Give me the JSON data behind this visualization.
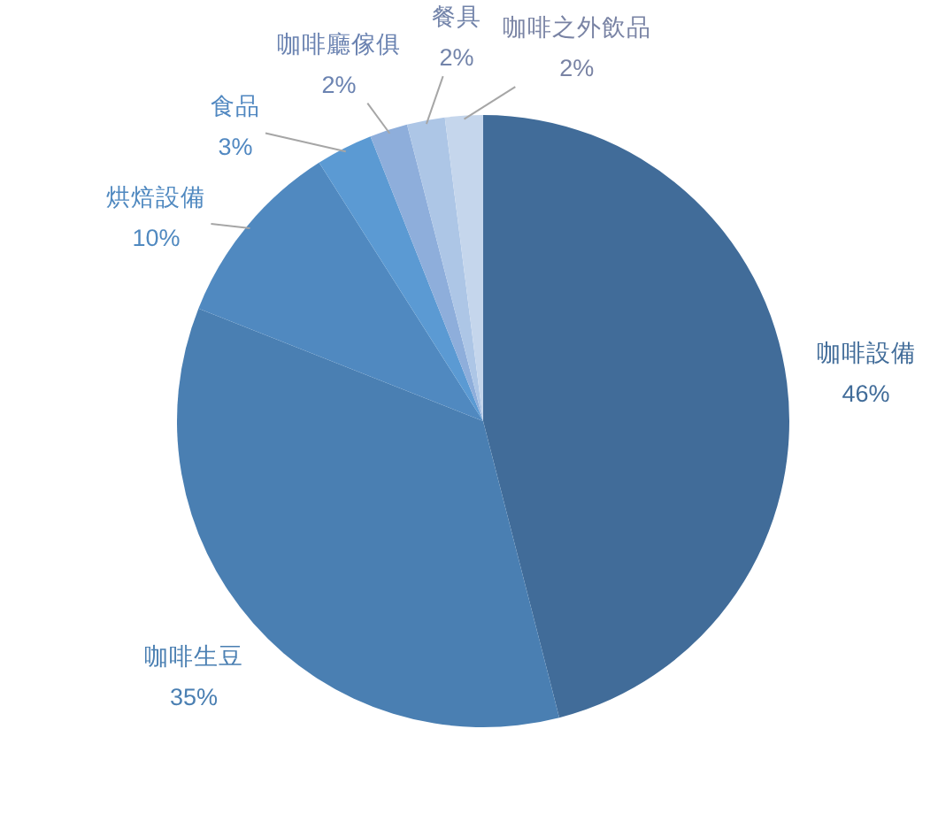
{
  "chart_data": {
    "type": "pie",
    "categories": [
      "咖啡設備",
      "咖啡生豆",
      "烘焙設備",
      "食品",
      "咖啡廳傢俱",
      "餐具",
      "咖啡之外飲品"
    ],
    "values": [
      46,
      35,
      10,
      3,
      2,
      2,
      2
    ],
    "colors": [
      "#416c99",
      "#4a7fb2",
      "#5089c0",
      "#5b9ad3",
      "#8eaedb",
      "#adc6e6",
      "#c5d6ec"
    ],
    "value_labels": [
      "46%",
      "35%",
      "10%",
      "3%",
      "2%",
      "2%",
      "2%"
    ]
  }
}
